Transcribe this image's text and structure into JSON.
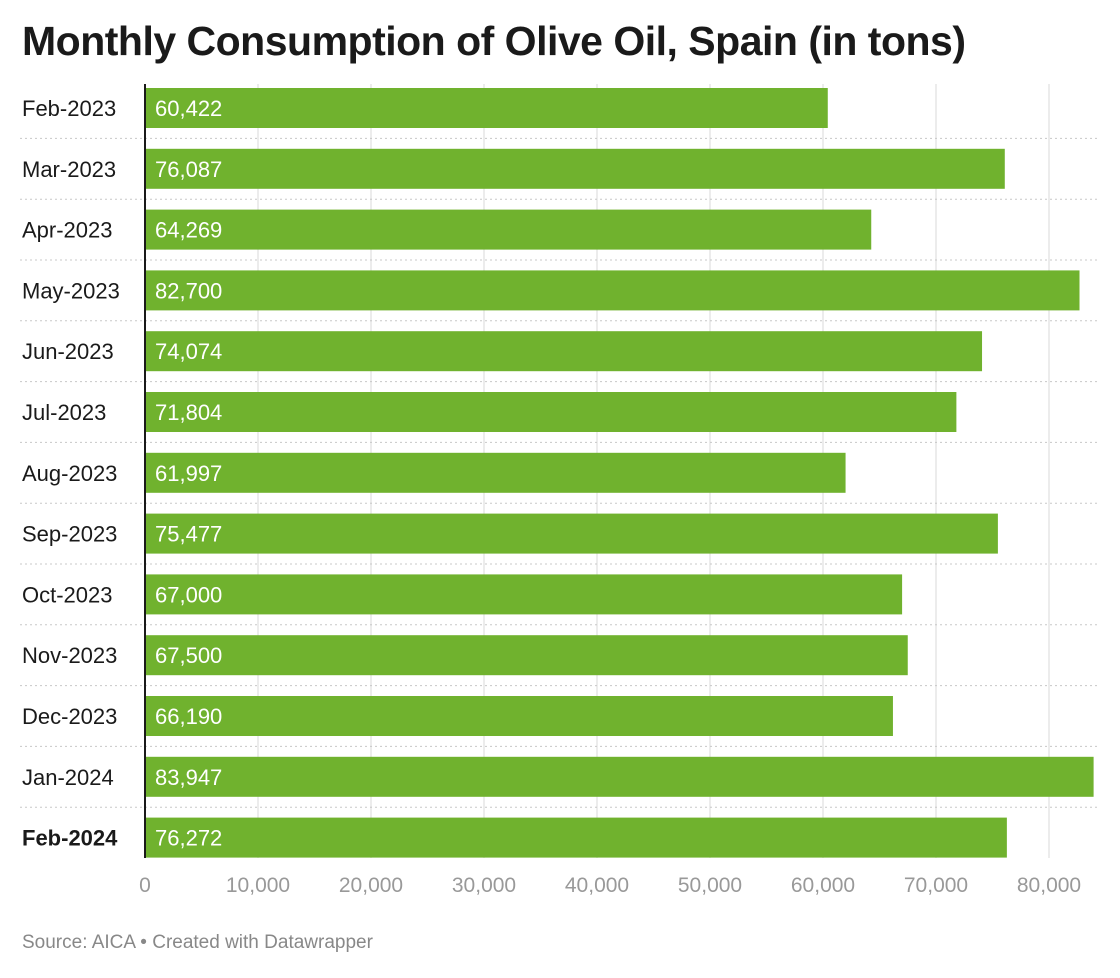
{
  "title": "Monthly Consumption of Olive Oil, Spain (in tons)",
  "source": "Source: AICA • Created with Datawrapper",
  "colors": {
    "bar": "#70b22e",
    "grid": "#d8d8d8",
    "axis": "#1a1a1a"
  },
  "chart_data": {
    "type": "bar",
    "orientation": "horizontal",
    "title": "Monthly Consumption of Olive Oil, Spain (in tons)",
    "categories": [
      "Feb-2023",
      "Mar-2023",
      "Apr-2023",
      "May-2023",
      "Jun-2023",
      "Jul-2023",
      "Aug-2023",
      "Sep-2023",
      "Oct-2023",
      "Nov-2023",
      "Dec-2023",
      "Jan-2024",
      "Feb-2024"
    ],
    "values": [
      60422,
      76087,
      64269,
      82700,
      74074,
      71804,
      61997,
      75477,
      67000,
      67500,
      66190,
      83947,
      76272
    ],
    "value_labels": [
      "60,422",
      "76,087",
      "64,269",
      "82,700",
      "74,074",
      "71,804",
      "61,997",
      "75,477",
      "67,000",
      "67,500",
      "66,190",
      "83,947",
      "76,272"
    ],
    "highlighted_category": "Feb-2024",
    "xticks": [
      0,
      10000,
      20000,
      30000,
      40000,
      50000,
      60000,
      70000,
      80000
    ],
    "xtick_labels": [
      "0",
      "10,000",
      "20,000",
      "30,000",
      "40,000",
      "50,000",
      "60,000",
      "70,000",
      "80,000"
    ],
    "xlim": [
      0,
      84000
    ],
    "grid": true,
    "legend": "none"
  }
}
